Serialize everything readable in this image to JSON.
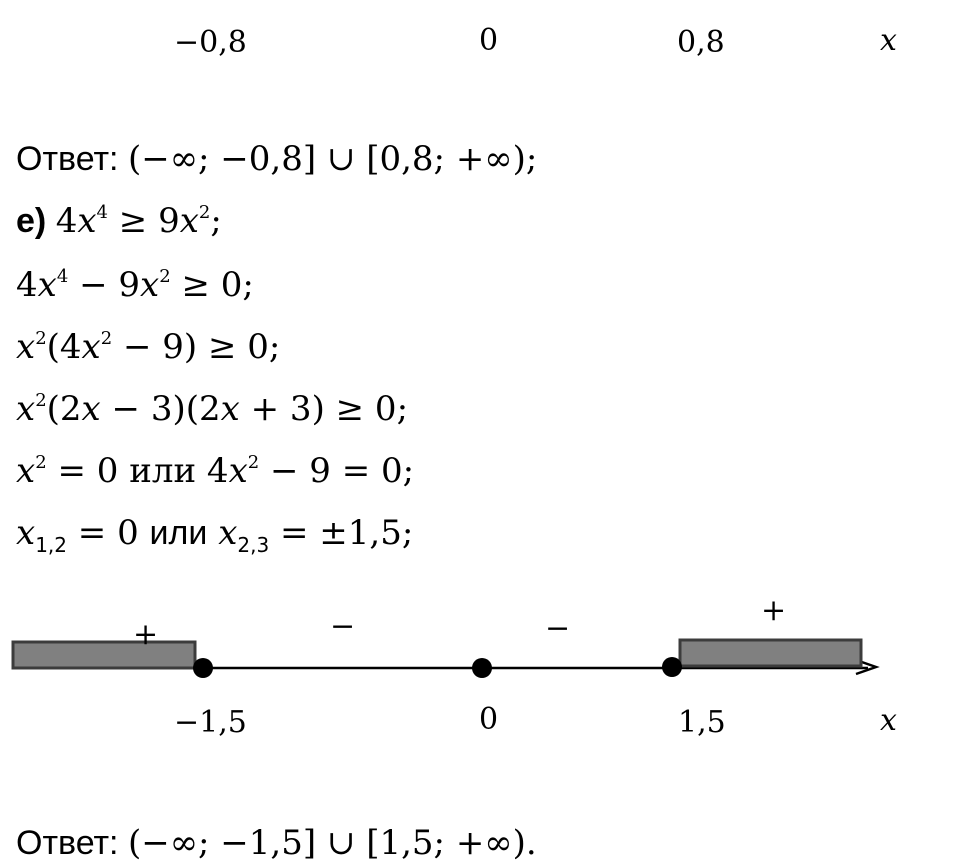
{
  "top_axis": {
    "labels": [
      "−0,8",
      "0",
      "0,8"
    ],
    "var": "x"
  },
  "answer_d": {
    "prefix": "Ответ:",
    "text": "(−∞; −0,8] ∪ [0,8; +∞);"
  },
  "part_e": {
    "label": "е)",
    "line1": {
      "a": "4",
      "x1": "x",
      "p1": "4",
      "op": " ≥ 9",
      "x2": "x",
      "p2": "2",
      "end": ";"
    },
    "line2": {
      "a": "4",
      "x1": "x",
      "p1": "4",
      "mid": " − 9",
      "x2": "x",
      "p2": "2",
      "end": " ≥ 0;"
    },
    "line3": {
      "x1": "x",
      "p1": "2",
      "mid": "(4",
      "x2": "x",
      "p2": "2",
      "end": " − 9) ≥ 0;"
    },
    "line4": {
      "x1": "x",
      "p1": "2",
      "a": "(2",
      "x2": "x",
      "b": " − 3)(2",
      "x3": "x",
      "end": " + 3) ≥ 0;"
    },
    "line5": {
      "x1": "x",
      "p1": "2",
      "a": " = 0 ",
      "or": "или",
      "b": " 4",
      "x2": "x",
      "p2": "2",
      "end": " − 9 = 0;"
    },
    "line6": {
      "x1": "x",
      "s1": "1,2",
      "a": " = 0 ",
      "or": "или",
      "x2": "x",
      "s2": "2,3",
      "end": " = ±1,5;"
    }
  },
  "number_line": {
    "points": [
      "−1,5",
      "0",
      "1,5"
    ],
    "signs": [
      "+",
      "−",
      "−",
      "+"
    ],
    "var": "x"
  },
  "answer_e": {
    "prefix": "Ответ:",
    "text": "(−∞; −1,5] ∪ [1,5; +∞)."
  }
}
